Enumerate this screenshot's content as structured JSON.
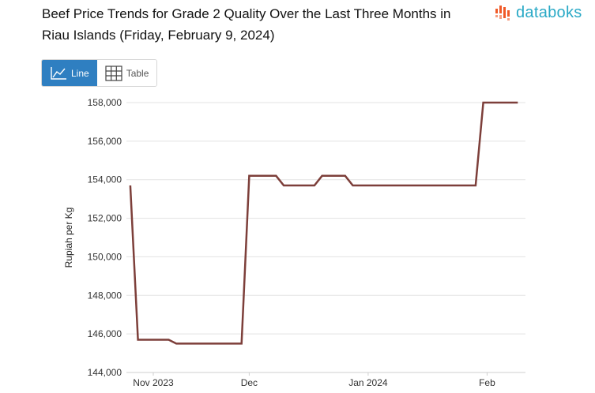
{
  "header": {
    "title": "Beef Price Trends for Grade 2 Quality Over the Last Three Months in Riau Islands (Friday, February 9, 2024)",
    "logo_text": "databoks",
    "brand_color": "#29a9c6",
    "logo_accent": "#f05a28"
  },
  "toggle": {
    "line_label": "Line",
    "table_label": "Table",
    "active_color": "#2f7fc1",
    "line_icon": "line-chart-icon",
    "table_icon": "table-grid-icon"
  },
  "chart_data": {
    "type": "line",
    "title": "Beef Price Trends for Grade 2 Quality Over the Last Three Months in Riau Islands (Friday, February 9, 2024)",
    "xlabel": "",
    "ylabel": "Rupiah per Kg",
    "ylim": [
      144000,
      158000
    ],
    "yticks": [
      144000,
      146000,
      148000,
      150000,
      152000,
      154000,
      156000,
      158000
    ],
    "ytick_labels": [
      "144,000",
      "146,000",
      "148,000",
      "150,000",
      "152,000",
      "154,000",
      "156,000",
      "158,000"
    ],
    "xlim": [
      "2023-10-30",
      "2024-02-11"
    ],
    "xticks": [
      {
        "date": "2023-11-06",
        "label": "Nov 2023"
      },
      {
        "date": "2023-12-01",
        "label": "Dec"
      },
      {
        "date": "2024-01-01",
        "label": "Jan 2024"
      },
      {
        "date": "2024-02-01",
        "label": "Feb"
      }
    ],
    "grid": true,
    "line_color": "#7d3f3a",
    "series": [
      {
        "points": [
          [
            "2023-10-31",
            153700
          ],
          [
            "2023-11-02",
            145700
          ],
          [
            "2023-11-10",
            145700
          ],
          [
            "2023-11-12",
            145500
          ],
          [
            "2023-11-29",
            145500
          ],
          [
            "2023-12-01",
            154200
          ],
          [
            "2023-12-08",
            154200
          ],
          [
            "2023-12-10",
            153700
          ],
          [
            "2023-12-18",
            153700
          ],
          [
            "2023-12-20",
            154200
          ],
          [
            "2023-12-26",
            154200
          ],
          [
            "2023-12-28",
            153700
          ],
          [
            "2024-01-29",
            153700
          ],
          [
            "2024-01-31",
            158000
          ],
          [
            "2024-02-09",
            158000
          ]
        ]
      }
    ]
  }
}
